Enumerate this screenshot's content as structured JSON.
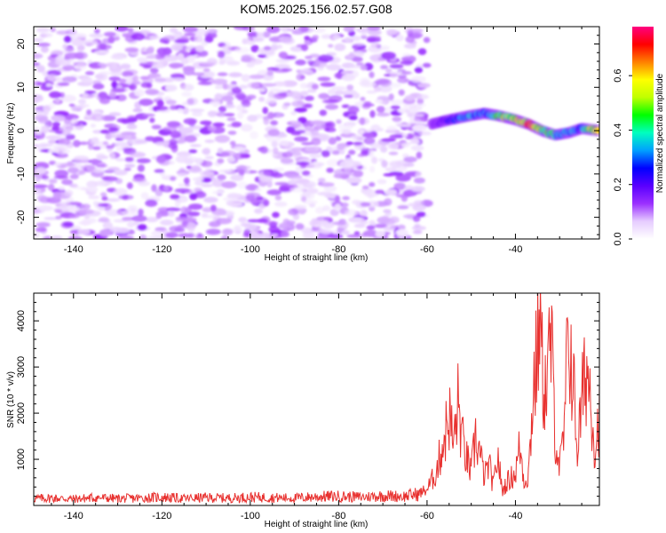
{
  "title": "KOM5.2025.156.02.57.G08",
  "chart_data": [
    {
      "type": "heatmap",
      "xlabel": "Height of straight line (km)",
      "ylabel": "Frequency (Hz)",
      "xlim": [
        -149,
        -21
      ],
      "ylim": [
        -25,
        24
      ],
      "xticks": [
        -140,
        -120,
        -100,
        -80,
        -60,
        -40
      ],
      "yticks": [
        -20,
        -10,
        0,
        10,
        20
      ],
      "colorbar": {
        "label": "Normalized spectral amplitude",
        "range": [
          0,
          0.78
        ],
        "ticks": [
          0.0,
          0.2,
          0.4,
          0.6
        ],
        "colormap": [
          "#ffffff",
          "#e6ccff",
          "#9b30ff",
          "#5a00ff",
          "#0000ff",
          "#00a0ff",
          "#00ffc0",
          "#00ff00",
          "#c0ff00",
          "#ffff00",
          "#ff8000",
          "#ff0000",
          "#ff0080"
        ]
      },
      "noise_region": {
        "x_range": [
          -149,
          -60
        ],
        "freq_range": [
          -25,
          24
        ],
        "typical_amplitude": 0.06
      },
      "signal_track": {
        "x": [
          -59,
          -55,
          -50,
          -47,
          -44,
          -40,
          -37,
          -34,
          -31,
          -28,
          -25,
          -21
        ],
        "freq": [
          1.5,
          2.5,
          3.5,
          4,
          3.5,
          2.5,
          1.5,
          0,
          -1,
          -0.5,
          0.5,
          0
        ],
        "amplitude": [
          0.12,
          0.25,
          0.35,
          0.3,
          0.45,
          0.55,
          0.7,
          0.5,
          0.4,
          0.35,
          0.3,
          0.75
        ]
      }
    },
    {
      "type": "line",
      "xlabel": "Height of straight line (km)",
      "ylabel": "SNR (10 * v/v)",
      "xlim": [
        -149,
        -21
      ],
      "ylim": [
        0,
        4600
      ],
      "xticks": [
        -140,
        -120,
        -100,
        -80,
        -60,
        -40
      ],
      "yticks": [
        1000,
        2000,
        3000,
        4000
      ],
      "color": "#e8312f",
      "x": [
        -149,
        -145,
        -140,
        -135,
        -130,
        -125,
        -120,
        -115,
        -110,
        -105,
        -100,
        -95,
        -90,
        -85,
        -80,
        -75,
        -70,
        -65,
        -62,
        -60,
        -58,
        -56,
        -55,
        -54,
        -53,
        -52,
        -51,
        -50,
        -49,
        -48,
        -47,
        -46,
        -45,
        -44,
        -43,
        -42,
        -41,
        -40,
        -39,
        -38,
        -37,
        -36,
        -35,
        -34.5,
        -34,
        -33,
        -32,
        -31,
        -30,
        -29,
        -28,
        -27,
        -26,
        -25,
        -24,
        -23,
        -22,
        -21
      ],
      "values": [
        150,
        160,
        140,
        170,
        150,
        160,
        180,
        150,
        170,
        160,
        180,
        170,
        160,
        190,
        200,
        180,
        210,
        200,
        250,
        350,
        700,
        1500,
        2000,
        1300,
        2200,
        1400,
        1000,
        700,
        1500,
        1100,
        600,
        900,
        400,
        1100,
        300,
        500,
        600,
        700,
        1300,
        500,
        700,
        2500,
        3300,
        4600,
        3000,
        2400,
        3700,
        1600,
        800,
        1500,
        3800,
        2800,
        1200,
        2200,
        3000,
        2500,
        1200,
        2000
      ]
    }
  ]
}
